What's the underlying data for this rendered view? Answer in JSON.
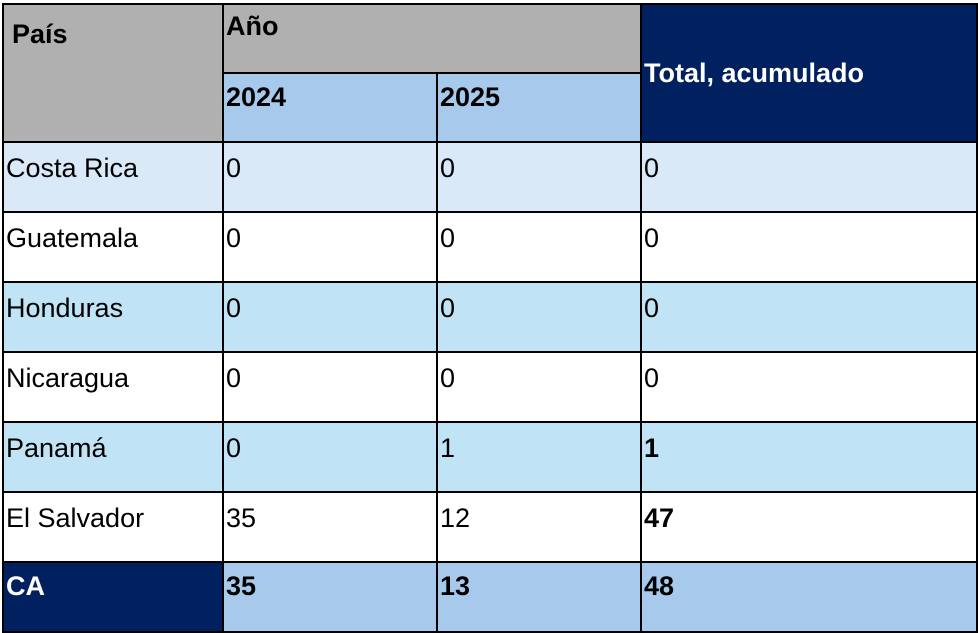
{
  "header": {
    "pais": "País",
    "ano": "Año",
    "years": [
      "2024",
      "2025"
    ],
    "total": "Total, acumulado"
  },
  "rows": [
    {
      "pais": "Costa Rica",
      "y2024": "0",
      "y2025": "0",
      "total": "0",
      "total_bold": false
    },
    {
      "pais": "Guatemala",
      "y2024": "0",
      "y2025": "0",
      "total": "0",
      "total_bold": false
    },
    {
      "pais": "Honduras",
      "y2024": "0",
      "y2025": "0",
      "total": "0",
      "total_bold": false
    },
    {
      "pais": "Nicaragua",
      "y2024": "0",
      "y2025": "0",
      "total": "0",
      "total_bold": false
    },
    {
      "pais": "Panamá",
      "y2024": "0",
      "y2025": "1",
      "total": "1",
      "total_bold": true
    },
    {
      "pais": "El Salvador",
      "y2024": "35",
      "y2025": "12",
      "total": "47",
      "total_bold": true
    }
  ],
  "footer": {
    "pais": "CA",
    "y2024": "35",
    "y2025": "13",
    "total": "48"
  },
  "colors": {
    "gray_header": "#b0b0b0",
    "year_header": "#a6c9ec",
    "navy": "#002060",
    "row_pale": "#dae9f8",
    "row_light": "#c0e4f5",
    "row_white": "#ffffff"
  }
}
